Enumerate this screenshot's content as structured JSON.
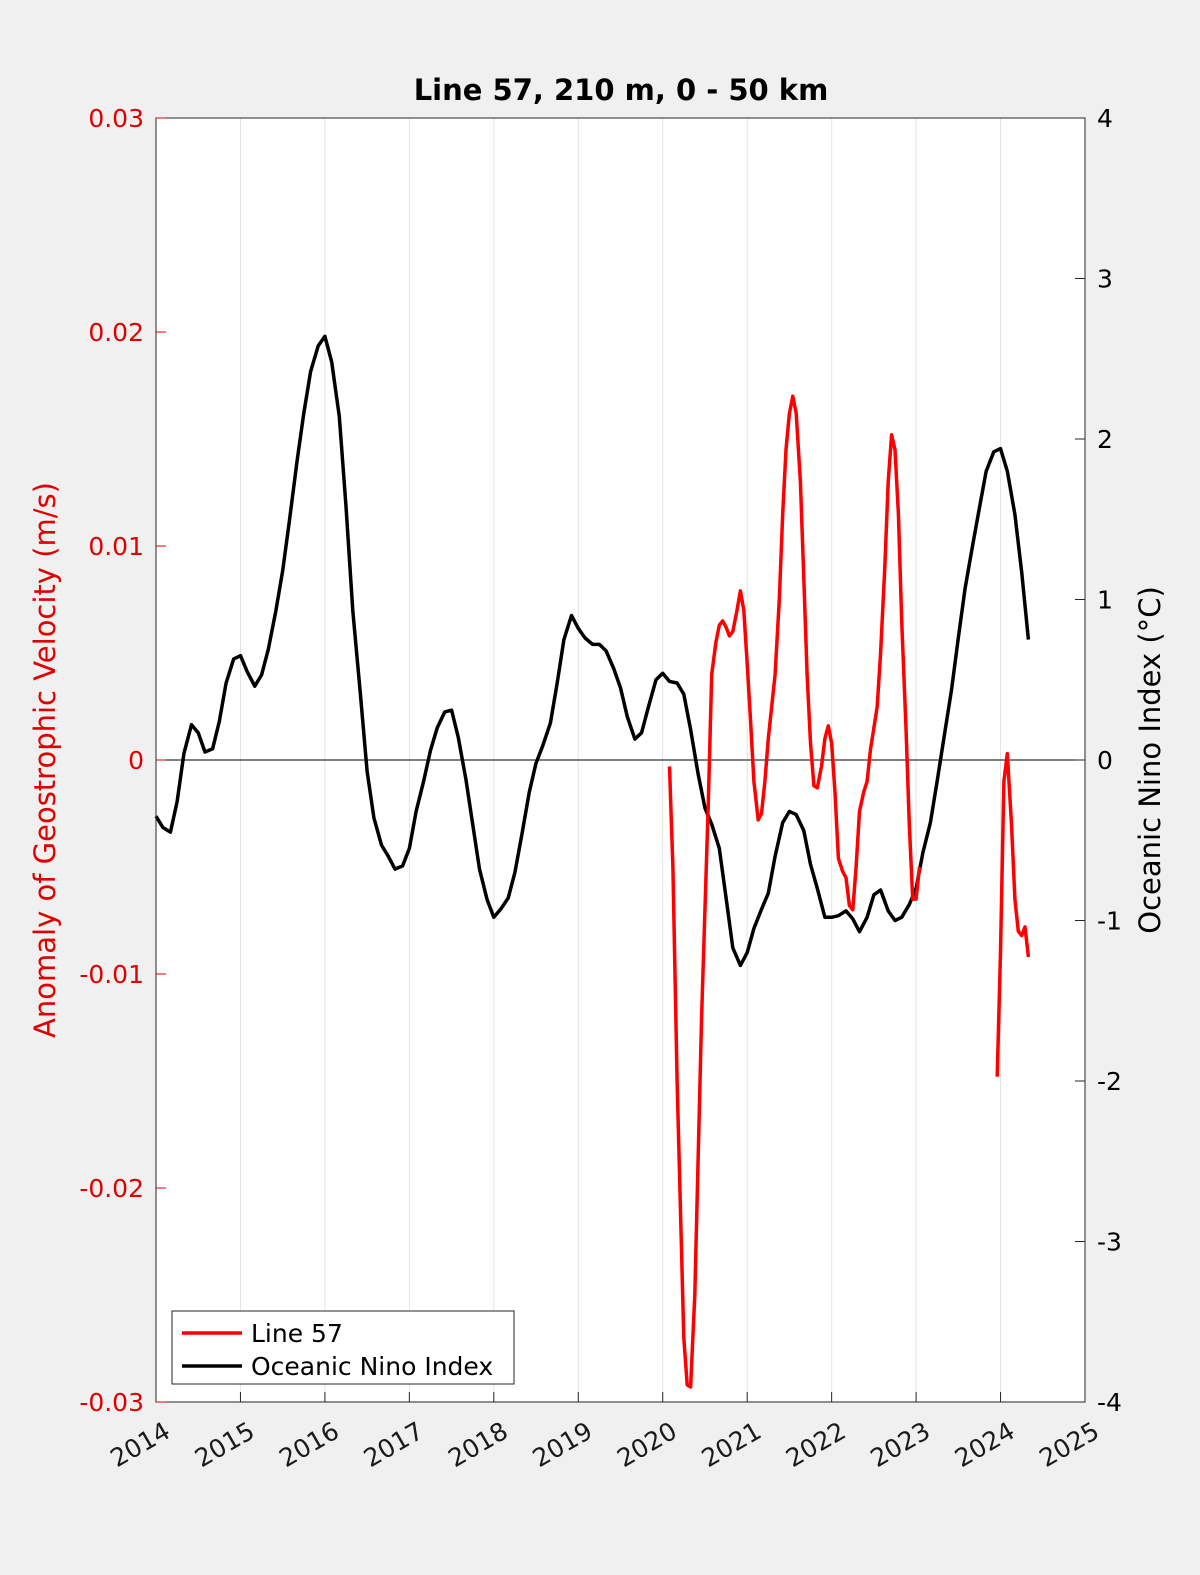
{
  "chart_data": {
    "type": "line",
    "title": "Line 57, 210 m, 0 - 50 km",
    "xlabel": "",
    "ylabel_left": "Anomaly of Geostrophic Velocity (m/s)",
    "ylabel_right": "Oceanic Nino Index (°C)",
    "xlim": [
      2014,
      2025
    ],
    "ylim_left": [
      -0.03,
      0.03
    ],
    "ylim_right": [
      -4,
      4
    ],
    "x_ticks": [
      "2014",
      "2015",
      "2016",
      "2017",
      "2018",
      "2019",
      "2020",
      "2021",
      "2022",
      "2023",
      "2024",
      "2025"
    ],
    "y_left_ticks": [
      "0.03",
      "0.02",
      "0.01",
      "0",
      "-0.01",
      "-0.02",
      "-0.03"
    ],
    "y_right_ticks": [
      "4",
      "3",
      "2",
      "1",
      "0",
      "-1",
      "-2",
      "-3",
      "-4"
    ],
    "grid": "vertical",
    "legend_position": "bottom-left",
    "colors": {
      "line57": "#ff0000",
      "oni": "#000000",
      "left_axis": "#e00000"
    },
    "series": [
      {
        "name": "Line 57",
        "axis": "left",
        "segments": [
          {
            "x": [
              2020.08,
              2020.12,
              2020.17,
              2020.25,
              2020.29,
              2020.33,
              2020.38,
              2020.46,
              2020.54,
              2020.58,
              2020.63,
              2020.67,
              2020.71,
              2020.75,
              2020.79,
              2020.83,
              2020.88,
              2020.92,
              2020.96,
              2021.0,
              2021.04,
              2021.08,
              2021.13,
              2021.17,
              2021.21,
              2021.25,
              2021.33,
              2021.38,
              2021.42,
              2021.46,
              2021.5,
              2021.54,
              2021.58,
              2021.63,
              2021.67,
              2021.71,
              2021.75,
              2021.79,
              2021.83,
              2021.88,
              2021.92,
              2021.96,
              2022.0,
              2022.04,
              2022.08,
              2022.13,
              2022.17,
              2022.21,
              2022.25,
              2022.29,
              2022.33,
              2022.38,
              2022.42,
              2022.46,
              2022.5,
              2022.54,
              2022.58,
              2022.63,
              2022.67,
              2022.71,
              2022.75,
              2022.79,
              2022.83,
              2022.88,
              2022.92,
              2022.96,
              2023.0,
              2023.04
            ],
            "y": [
              -0.0003,
              -0.005,
              -0.015,
              -0.027,
              -0.0292,
              -0.0293,
              -0.025,
              -0.012,
              -0.002,
              0.004,
              0.0055,
              0.0063,
              0.0065,
              0.0062,
              0.0058,
              0.006,
              0.007,
              0.0079,
              0.007,
              0.0045,
              0.0018,
              -0.001,
              -0.0028,
              -0.0025,
              -0.001,
              0.001,
              0.004,
              0.0075,
              0.0115,
              0.0145,
              0.0162,
              0.017,
              0.0162,
              0.013,
              0.0085,
              0.004,
              0.0008,
              -0.0012,
              -0.0013,
              -0.0003,
              0.001,
              0.0016,
              0.0008,
              -0.0015,
              -0.0046,
              -0.0052,
              -0.0055,
              -0.0068,
              -0.007,
              -0.005,
              -0.0024,
              -0.0015,
              -0.001,
              0.0005,
              0.0015,
              0.0025,
              0.005,
              0.009,
              0.013,
              0.0152,
              0.0145,
              0.0115,
              0.0065,
              0.0015,
              -0.003,
              -0.0065,
              -0.0065,
              -0.005
            ]
          },
          {
            "x": [
              2023.96,
              2024.0,
              2024.04,
              2024.08,
              2024.13,
              2024.17,
              2024.21,
              2024.25,
              2024.29,
              2024.33
            ],
            "y": [
              -0.0148,
              -0.009,
              -0.001,
              0.0003,
              -0.003,
              -0.0065,
              -0.008,
              -0.0082,
              -0.0078,
              -0.0092
            ]
          }
        ]
      },
      {
        "name": "Oceanic Nino Index",
        "axis": "right",
        "x": [
          2014.0,
          2014.08,
          2014.17,
          2014.25,
          2014.33,
          2014.42,
          2014.5,
          2014.58,
          2014.67,
          2014.75,
          2014.83,
          2014.92,
          2015.0,
          2015.08,
          2015.17,
          2015.25,
          2015.33,
          2015.42,
          2015.5,
          2015.58,
          2015.67,
          2015.75,
          2015.83,
          2015.92,
          2016.0,
          2016.08,
          2016.17,
          2016.25,
          2016.33,
          2016.42,
          2016.5,
          2016.58,
          2016.67,
          2016.75,
          2016.83,
          2016.92,
          2017.0,
          2017.08,
          2017.17,
          2017.25,
          2017.33,
          2017.42,
          2017.5,
          2017.58,
          2017.67,
          2017.75,
          2017.83,
          2017.92,
          2018.0,
          2018.08,
          2018.17,
          2018.25,
          2018.33,
          2018.42,
          2018.5,
          2018.58,
          2018.67,
          2018.75,
          2018.83,
          2018.92,
          2019.0,
          2019.08,
          2019.17,
          2019.25,
          2019.33,
          2019.42,
          2019.5,
          2019.58,
          2019.67,
          2019.75,
          2019.83,
          2019.92,
          2020.0,
          2020.08,
          2020.17,
          2020.25,
          2020.33,
          2020.42,
          2020.5,
          2020.58,
          2020.67,
          2020.75,
          2020.83,
          2020.92,
          2021.0,
          2021.08,
          2021.17,
          2021.25,
          2021.33,
          2021.42,
          2021.5,
          2021.58,
          2021.67,
          2021.75,
          2021.83,
          2021.92,
          2022.0,
          2022.08,
          2022.17,
          2022.25,
          2022.33,
          2022.42,
          2022.5,
          2022.58,
          2022.67,
          2022.75,
          2022.83,
          2022.92,
          2023.0,
          2023.08,
          2023.17,
          2023.25,
          2023.33,
          2023.42,
          2023.5,
          2023.58,
          2023.67,
          2023.75,
          2023.83,
          2023.92,
          2024.0,
          2024.08,
          2024.17,
          2024.25,
          2024.33
        ],
        "y": [
          -0.35,
          -0.42,
          -0.45,
          -0.26,
          0.04,
          0.22,
          0.17,
          0.05,
          0.07,
          0.24,
          0.48,
          0.63,
          0.65,
          0.55,
          0.46,
          0.53,
          0.69,
          0.93,
          1.18,
          1.49,
          1.86,
          2.16,
          2.42,
          2.58,
          2.64,
          2.48,
          2.14,
          1.58,
          0.93,
          0.41,
          -0.07,
          -0.36,
          -0.53,
          -0.6,
          -0.68,
          -0.66,
          -0.55,
          -0.32,
          -0.13,
          0.06,
          0.2,
          0.3,
          0.31,
          0.14,
          -0.12,
          -0.4,
          -0.68,
          -0.87,
          -0.98,
          -0.93,
          -0.86,
          -0.7,
          -0.47,
          -0.2,
          -0.02,
          0.09,
          0.23,
          0.48,
          0.75,
          0.9,
          0.82,
          0.76,
          0.72,
          0.72,
          0.68,
          0.57,
          0.45,
          0.27,
          0.13,
          0.17,
          0.33,
          0.5,
          0.54,
          0.49,
          0.48,
          0.41,
          0.19,
          -0.09,
          -0.3,
          -0.4,
          -0.55,
          -0.86,
          -1.17,
          -1.28,
          -1.2,
          -1.05,
          -0.93,
          -0.83,
          -0.6,
          -0.39,
          -0.32,
          -0.34,
          -0.44,
          -0.65,
          -0.8,
          -0.98,
          -0.98,
          -0.97,
          -0.94,
          -0.99,
          -1.07,
          -0.98,
          -0.84,
          -0.81,
          -0.94,
          -1.0,
          -0.98,
          -0.9,
          -0.8,
          -0.58,
          -0.39,
          -0.13,
          0.14,
          0.44,
          0.76,
          1.07,
          1.34,
          1.57,
          1.8,
          1.92,
          1.94,
          1.8,
          1.53,
          1.17,
          0.75
        ]
      }
    ]
  }
}
